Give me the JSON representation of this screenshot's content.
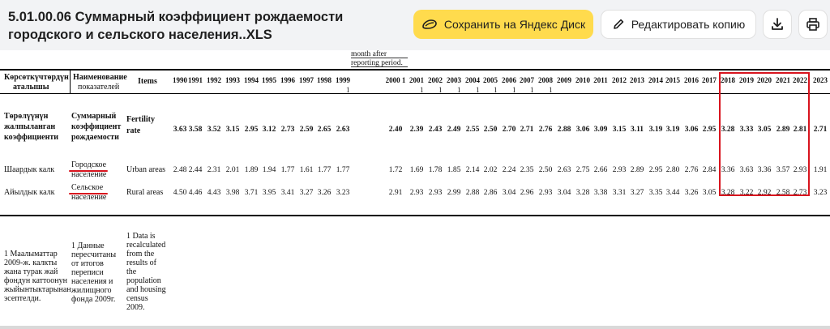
{
  "header": {
    "title": "5.01.00.06 Суммарный коэффициент рождаемости городского и сельского населения..XLS",
    "save_label": "Сохранить на Яндекс Диск",
    "edit_label": "Редактировать копию"
  },
  "sheet": {
    "top_note": [
      "month after",
      "reporting period."
    ],
    "headers": {
      "kg_label": [
        "Көрсөткүчтөрдүн",
        "аталышы"
      ],
      "ru_label": [
        "Наименование",
        "показателей"
      ],
      "en_label": "Items",
      "years": [
        {
          "y": "1990",
          "s": ""
        },
        {
          "y": "1991",
          "s": ""
        },
        {
          "y": "1992",
          "s": ""
        },
        {
          "y": "1993",
          "s": ""
        },
        {
          "y": "1994",
          "s": ""
        },
        {
          "y": "1995",
          "s": ""
        },
        {
          "y": "1996",
          "s": ""
        },
        {
          "y": "1997",
          "s": ""
        },
        {
          "y": "1998",
          "s": ""
        },
        {
          "y": "1999",
          "s": "1"
        },
        {
          "y": "2000 1",
          "s": ""
        },
        {
          "y": "2001",
          "s": "1"
        },
        {
          "y": "2002",
          "s": "1"
        },
        {
          "y": "2003",
          "s": "1"
        },
        {
          "y": "2004",
          "s": "1"
        },
        {
          "y": "2005",
          "s": "1"
        },
        {
          "y": "2006",
          "s": "1"
        },
        {
          "y": "2007",
          "s": "1"
        },
        {
          "y": "2008",
          "s": "1"
        },
        {
          "y": "2009",
          "s": ""
        },
        {
          "y": "2010",
          "s": ""
        },
        {
          "y": "2011",
          "s": ""
        },
        {
          "y": "2012",
          "s": ""
        },
        {
          "y": "2013",
          "s": ""
        },
        {
          "y": "2014",
          "s": ""
        },
        {
          "y": "2015",
          "s": ""
        },
        {
          "y": "2016",
          "s": ""
        },
        {
          "y": "2017",
          "s": ""
        },
        {
          "y": "2018",
          "s": ""
        },
        {
          "y": "2019",
          "s": ""
        },
        {
          "y": "2020",
          "s": ""
        },
        {
          "y": "2021",
          "s": ""
        },
        {
          "y": "2022",
          "s": ""
        },
        {
          "y": "2023",
          "s": ""
        }
      ]
    },
    "rows": [
      {
        "kg": [
          "Төрөлүүнүн",
          "жалпыланган",
          "коэффициенти"
        ],
        "ru": [
          "Суммарный",
          "коэффициент",
          "рождаемости"
        ],
        "en": [
          "Fertility",
          "rate"
        ],
        "bold": true,
        "values": [
          "3.63",
          "3.58",
          "3.52",
          "3.15",
          "2.95",
          "3.12",
          "2.73",
          "2.59",
          "2.65",
          "2.63",
          "2.40",
          "2.39",
          "2.43",
          "2.49",
          "2.55",
          "2.50",
          "2.70",
          "2.71",
          "2.76",
          "2.88",
          "3.06",
          "3.09",
          "3.15",
          "3.11",
          "3.19",
          "3.19",
          "3.06",
          "2.95",
          "3.28",
          "3.33",
          "3.05",
          "2.89",
          "2.81",
          "2.71"
        ]
      },
      {
        "kg": [
          "Шаардык калк"
        ],
        "ru": [
          "Городское",
          "население"
        ],
        "en": [
          "Urban areas"
        ],
        "bold": false,
        "values": [
          "2.48",
          "2.44",
          "2.31",
          "2.01",
          "1.89",
          "1.94",
          "1.77",
          "1.61",
          "1.77",
          "1.77",
          "1.72",
          "1.69",
          "1.78",
          "1.85",
          "2.14",
          "2.02",
          "2.24",
          "2.35",
          "2.50",
          "2.63",
          "2.75",
          "2.66",
          "2.93",
          "2.89",
          "2.95",
          "2.80",
          "2.76",
          "2.84",
          "3.36",
          "3.63",
          "3.36",
          "3.57",
          "2.93",
          "1.91"
        ]
      },
      {
        "kg": [
          "Айылдык калк"
        ],
        "ru": [
          "Сельское",
          "население"
        ],
        "en": [
          "Rural areas"
        ],
        "bold": false,
        "values": [
          "4.50",
          "4.46",
          "4.43",
          "3.98",
          "3.71",
          "3.95",
          "3.41",
          "3.27",
          "3.26",
          "3.23",
          "2.91",
          "2.93",
          "2.93",
          "2.99",
          "2.88",
          "2.86",
          "3.04",
          "2.96",
          "2.93",
          "3.04",
          "3.28",
          "3.38",
          "3.31",
          "3.27",
          "3.35",
          "3.44",
          "3.26",
          "3.05",
          "3.28",
          "3.22",
          "2.92",
          "2.58",
          "2.73",
          "3.23"
        ]
      }
    ],
    "footnotes": {
      "kg": [
        "1 Маалыматтар",
        "2009-ж. калкты",
        "жана турак жай",
        "фондун каттоонун",
        "жыйынтыктарынан",
        "эсептелди."
      ],
      "ru": [
        "1 Данные",
        "пересчитаны",
        "от итогов",
        "переписи",
        "населения и",
        "жилищного",
        "фонда 2009г."
      ],
      "en": [
        "1 Data is",
        "recalculated",
        "from the",
        "results of",
        "the",
        "population",
        "and housing",
        "census",
        "2009."
      ]
    }
  },
  "colors": {
    "accent_yellow": "#ffdb4d",
    "highlight_red": "#d8141e"
  },
  "icons": {
    "save": "yandex-disk-icon",
    "edit": "pencil-icon",
    "download": "download-icon",
    "print": "printer-icon"
  }
}
